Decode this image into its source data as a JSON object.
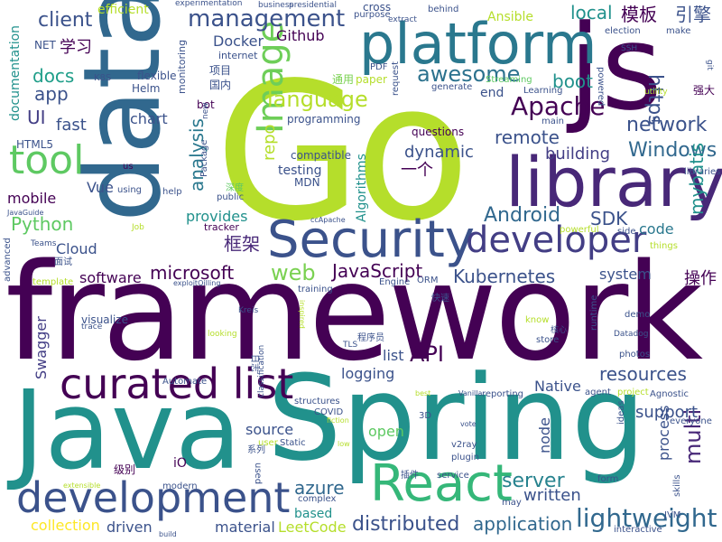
{
  "word_cloud": {
    "palette": [
      "#440154",
      "#3b528b",
      "#21918c",
      "#5ec962",
      "#b5de2b",
      "#fde725"
    ],
    "words": [
      {
        "text": "Go",
        "color": "#b5de2b"
      },
      {
        "text": "framework",
        "color": "#440154"
      },
      {
        "text": "Java",
        "color": "#21918c"
      },
      {
        "text": "Spring",
        "color": "#21918c"
      },
      {
        "text": "data",
        "color": "#31688e"
      },
      {
        "text": "js",
        "color": "#440154"
      },
      {
        "text": "library",
        "color": "#482878"
      },
      {
        "text": "platform",
        "color": "#2a788e"
      },
      {
        "text": "Security",
        "color": "#3b528b"
      },
      {
        "text": "React",
        "color": "#35b779"
      },
      {
        "text": "development",
        "color": "#3b528b"
      },
      {
        "text": "curated list",
        "color": "#440154"
      },
      {
        "text": "developer",
        "color": "#433e85"
      },
      {
        "text": "tool",
        "color": "#5ec962"
      },
      {
        "text": "Image",
        "color": "#6ece58"
      },
      {
        "text": "management",
        "color": "#3b528b"
      },
      {
        "text": "lightweight",
        "color": "#31688e"
      },
      {
        "text": "Apache",
        "color": "#440154"
      },
      {
        "text": "awesome",
        "color": "#2c728e"
      },
      {
        "text": "language",
        "color": "#b5de2b"
      },
      {
        "text": "distributed",
        "color": "#3b528b"
      },
      {
        "text": "Android",
        "color": "#31688e"
      },
      {
        "text": "web",
        "color": "#7ad151"
      },
      {
        "text": "network",
        "color": "#3b528b"
      },
      {
        "text": "Windows",
        "color": "#31688e"
      },
      {
        "text": "multi",
        "color": "#482878"
      },
      {
        "text": "Kubernetes",
        "color": "#3b528b"
      },
      {
        "text": "microsoft",
        "color": "#440154"
      },
      {
        "text": "JavaScript",
        "color": "#440154"
      },
      {
        "text": "application",
        "color": "#31688e"
      },
      {
        "text": "server",
        "color": "#26828e"
      },
      {
        "text": "https",
        "color": "#3b528b"
      },
      {
        "text": "azure",
        "color": "#31688e"
      },
      {
        "text": "resources",
        "color": "#3b528b"
      },
      {
        "text": "remote",
        "color": "#3b528b"
      },
      {
        "text": "API",
        "color": "#440154"
      },
      {
        "text": "SDK",
        "color": "#3b528b"
      },
      {
        "text": "boot",
        "color": "#21918c"
      },
      {
        "text": "mybatis",
        "color": "#21918c"
      },
      {
        "text": "analysis",
        "color": "#2a788e"
      },
      {
        "text": "docs",
        "color": "#1f9e89"
      },
      {
        "text": "client",
        "color": "#3b528b"
      },
      {
        "text": "local",
        "color": "#21918c"
      },
      {
        "text": "模板",
        "color": "#440154"
      },
      {
        "text": "引擎",
        "color": "#3b528b"
      },
      {
        "text": "repo",
        "color": "#b5de2b"
      },
      {
        "text": "Python",
        "color": "#5ec962"
      },
      {
        "text": "support",
        "color": "#3b528b"
      },
      {
        "text": "building",
        "color": "#433e85"
      },
      {
        "text": "dynamic",
        "color": "#3b528b"
      },
      {
        "text": "一个",
        "color": "#440154"
      },
      {
        "text": "框架",
        "color": "#482878"
      },
      {
        "text": "操作",
        "color": "#440154"
      },
      {
        "text": "written",
        "color": "#3b528b"
      },
      {
        "text": "collection",
        "color": "#fde725"
      },
      {
        "text": "material",
        "color": "#3b528b"
      },
      {
        "text": "driven",
        "color": "#3b528b"
      },
      {
        "text": "LeetCode",
        "color": "#b5de2b"
      },
      {
        "text": "based",
        "color": "#21918c"
      },
      {
        "text": "code",
        "color": "#2a788e"
      },
      {
        "text": "source",
        "color": "#3b528b"
      },
      {
        "text": "open",
        "color": "#5ec962"
      },
      {
        "text": "node",
        "color": "#3b528b"
      },
      {
        "text": "process",
        "color": "#3b528b"
      },
      {
        "text": "logging",
        "color": "#3b528b"
      },
      {
        "text": "testing",
        "color": "#3b528b"
      },
      {
        "text": "list",
        "color": "#3b528b"
      },
      {
        "text": "Native",
        "color": "#3b528b"
      },
      {
        "text": "Swagger",
        "color": "#433e85"
      },
      {
        "text": "Cloud",
        "color": "#3b528b"
      },
      {
        "text": "software",
        "color": "#440154"
      },
      {
        "text": "fast",
        "color": "#3b528b"
      },
      {
        "text": "chart",
        "color": "#3b528b"
      },
      {
        "text": "app",
        "color": "#3b528b"
      },
      {
        "text": "UI",
        "color": "#433e85"
      },
      {
        "text": "Vue",
        "color": "#3b528b"
      },
      {
        "text": "mobile",
        "color": "#440154"
      },
      {
        "text": "system",
        "color": "#3b528b"
      },
      {
        "text": "Docker",
        "color": "#3b528b"
      },
      {
        "text": "Github",
        "color": "#440154"
      },
      {
        "text": "Ansible",
        "color": "#b5de2b"
      },
      {
        "text": "学习",
        "color": "#440154"
      },
      {
        "text": "provides",
        "color": "#21918c"
      },
      {
        "text": "efficient",
        "color": "#b5de2b"
      },
      {
        "text": "documentation",
        "color": "#21918c"
      },
      {
        "text": "Algorithms",
        "color": "#21918c"
      },
      {
        "text": "programming",
        "color": "#3b528b"
      },
      {
        "text": "visualize",
        "color": "#3b528b"
      },
      {
        "text": "end",
        "color": "#3b528b"
      },
      {
        "text": "cross",
        "color": "#3b528b"
      },
      {
        "text": "questions",
        "color": "#440154"
      },
      {
        "text": "compatible",
        "color": "#3b528b"
      },
      {
        "text": "MDN",
        "color": "#3b528b"
      },
      {
        "text": "Streaming",
        "color": "#5ec962"
      },
      {
        "text": "HTML5",
        "color": "#3b528b"
      },
      {
        "text": "NET",
        "color": "#3b528b"
      },
      {
        "text": "Helm",
        "color": "#3b528b"
      },
      {
        "text": "K8S",
        "color": "#3b528b"
      },
      {
        "text": "flexible",
        "color": "#3b528b"
      },
      {
        "text": "monitoring",
        "color": "#3b528b"
      },
      {
        "text": "项目",
        "color": "#3b528b"
      },
      {
        "text": "国内",
        "color": "#3b528b"
      },
      {
        "text": "通用",
        "color": "#7ad151"
      },
      {
        "text": "paper",
        "color": "#b5de2b"
      },
      {
        "text": "PDF",
        "color": "#3b528b"
      },
      {
        "text": "bot",
        "color": "#440154"
      },
      {
        "text": "internet",
        "color": "#3b528b"
      },
      {
        "text": "business",
        "color": "#3b528b"
      },
      {
        "text": "presidential",
        "color": "#3b528b"
      },
      {
        "text": "experimentation",
        "color": "#3b528b"
      },
      {
        "text": "purpose",
        "color": "#3b528b"
      },
      {
        "text": "extract",
        "color": "#3b528b"
      },
      {
        "text": "behind",
        "color": "#3b528b"
      },
      {
        "text": "election",
        "color": "#3b528b"
      },
      {
        "text": "make",
        "color": "#3b528b"
      },
      {
        "text": "SSH",
        "color": "#3b528b"
      },
      {
        "text": "git",
        "color": "#3b528b"
      },
      {
        "text": "request",
        "color": "#3b528b"
      },
      {
        "text": "generate",
        "color": "#3b528b"
      },
      {
        "text": "Learning",
        "color": "#3b528b"
      },
      {
        "text": "powered",
        "color": "#3b528b"
      },
      {
        "text": "utility",
        "color": "#b5de2b"
      },
      {
        "text": "强大",
        "color": "#440154"
      },
      {
        "text": "main",
        "color": "#3b528b"
      },
      {
        "text": "us",
        "color": "#440154"
      },
      {
        "text": "using",
        "color": "#3b528b"
      },
      {
        "text": "help",
        "color": "#3b528b"
      },
      {
        "text": "深度",
        "color": "#5ec962"
      },
      {
        "text": "public",
        "color": "#3b528b"
      },
      {
        "text": "tracker",
        "color": "#440154"
      },
      {
        "text": "powerful",
        "color": "#b5de2b"
      },
      {
        "text": "side",
        "color": "#3b528b"
      },
      {
        "text": "things",
        "color": "#b5de2b"
      },
      {
        "text": "libraries",
        "color": "#3b528b"
      },
      {
        "text": "Teams",
        "color": "#3b528b"
      },
      {
        "text": "Job",
        "color": "#b5de2b"
      },
      {
        "text": "JavaGuide",
        "color": "#3b528b"
      },
      {
        "text": "advanced",
        "color": "#3b528b"
      },
      {
        "text": "面试",
        "color": "#3b528b"
      },
      {
        "text": "template",
        "color": "#b5de2b"
      },
      {
        "text": "explojtQilling",
        "color": "#3b528b"
      },
      {
        "text": "training",
        "color": "#3b528b"
      },
      {
        "text": "Engine",
        "color": "#3b528b"
      },
      {
        "text": "ORM",
        "color": "#3b528b"
      },
      {
        "text": "快速",
        "color": "#3b528b"
      },
      {
        "text": "Kreis",
        "color": "#3b528b"
      },
      {
        "text": "inspired",
        "color": "#b5de2b"
      },
      {
        "text": "核心",
        "color": "#3b528b"
      },
      {
        "text": "know",
        "color": "#b5de2b"
      },
      {
        "text": "store",
        "color": "#3b528b"
      },
      {
        "text": "demo",
        "color": "#3b528b"
      },
      {
        "text": "Datadog",
        "color": "#3b528b"
      },
      {
        "text": "runtime",
        "color": "#3b528b"
      },
      {
        "text": "photos",
        "color": "#3b528b"
      },
      {
        "text": "looking",
        "color": "#b5de2b"
      },
      {
        "text": "TLS",
        "color": "#3b528b"
      },
      {
        "text": "程序员",
        "color": "#3b528b"
      },
      {
        "text": "trace",
        "color": "#3b528b"
      },
      {
        "text": "classification",
        "color": "#3b528b"
      },
      {
        "text": "日志",
        "color": "#3b528b"
      },
      {
        "text": "Automate",
        "color": "#3b528b"
      },
      {
        "text": "structures",
        "color": "#3b528b"
      },
      {
        "text": "COVID",
        "color": "#3b528b"
      },
      {
        "text": "fiction",
        "color": "#b5de2b"
      },
      {
        "text": "best",
        "color": "#b5de2b"
      },
      {
        "text": "Vanilla",
        "color": "#3b528b"
      },
      {
        "text": "reporting",
        "color": "#3b528b"
      },
      {
        "text": "agent",
        "color": "#3b528b"
      },
      {
        "text": "project",
        "color": "#b5de2b"
      },
      {
        "text": "Agnostic",
        "color": "#3b528b"
      },
      {
        "text": "everyone",
        "color": "#3b528b"
      },
      {
        "text": "3D",
        "color": "#3b528b"
      },
      {
        "text": "vote",
        "color": "#3b528b"
      },
      {
        "text": "Static",
        "color": "#3b528b"
      },
      {
        "text": "user",
        "color": "#b5de2b"
      },
      {
        "text": "系列",
        "color": "#3b528b"
      },
      {
        "text": "v2ray",
        "color": "#3b528b"
      },
      {
        "text": "plugin",
        "color": "#3b528b"
      },
      {
        "text": "ideas",
        "color": "#3b528b"
      },
      {
        "text": "interactive",
        "color": "#3b528b"
      },
      {
        "text": "form",
        "color": "#3b528b"
      },
      {
        "text": "skills",
        "color": "#3b528b"
      },
      {
        "text": "JVM",
        "color": "#3b528b"
      },
      {
        "text": "iO",
        "color": "#440154"
      },
      {
        "text": "级别",
        "color": "#440154"
      },
      {
        "text": "used",
        "color": "#3b528b"
      },
      {
        "text": "插件",
        "color": "#3b528b"
      },
      {
        "text": "service",
        "color": "#3b528b"
      },
      {
        "text": "complex",
        "color": "#3b528b"
      },
      {
        "text": "modern",
        "color": "#3b528b"
      },
      {
        "text": "extensible",
        "color": "#b5de2b"
      },
      {
        "text": "build",
        "color": "#3b528b"
      },
      {
        "text": "may",
        "color": "#3b528b"
      },
      {
        "text": "ccApache",
        "color": "#3b528b"
      },
      {
        "text": "low",
        "color": "#b5de2b"
      },
      {
        "text": "Package",
        "color": "#3b528b"
      },
      {
        "text": "new",
        "color": "#3b528b"
      }
    ]
  }
}
